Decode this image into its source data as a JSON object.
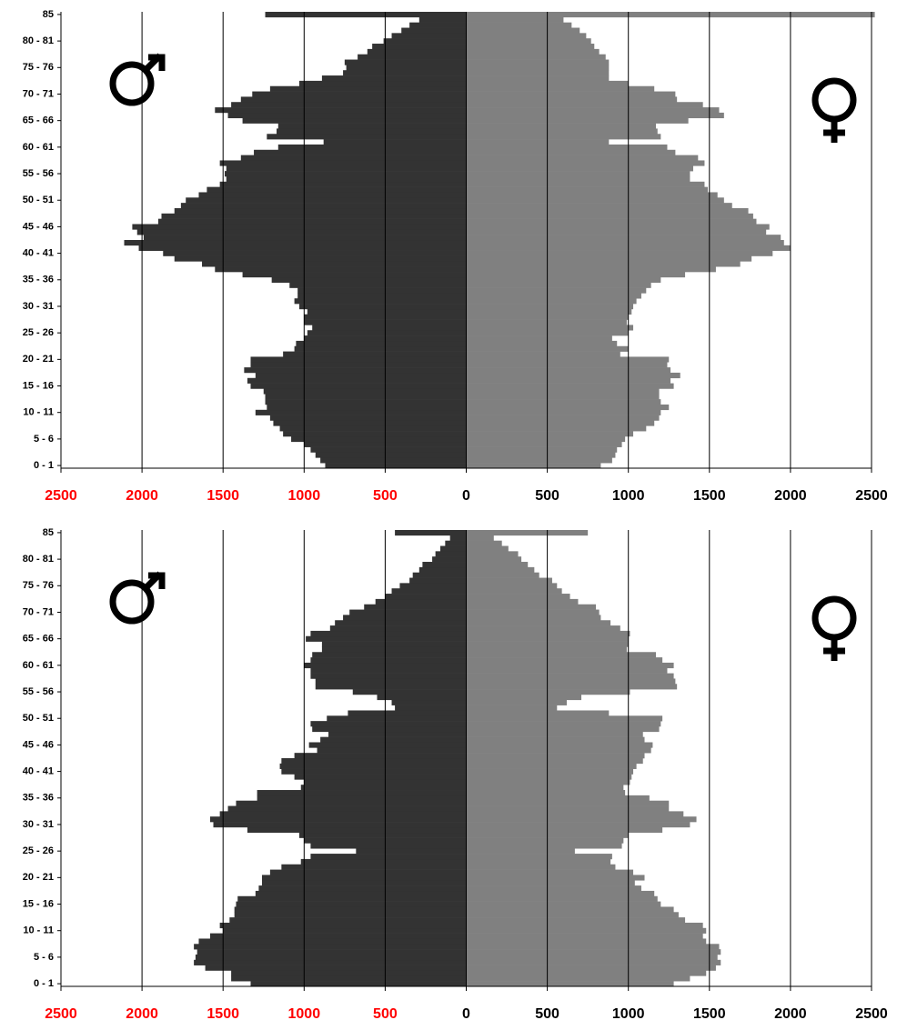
{
  "chart_data": [
    {
      "type": "bar",
      "orientation": "horizontal",
      "categories": [
        "0 - 1",
        null,
        null,
        null,
        null,
        "5 - 6",
        null,
        null,
        null,
        null,
        "10 - 11",
        null,
        null,
        null,
        null,
        "15 - 16",
        null,
        null,
        null,
        null,
        "20 - 21",
        null,
        null,
        null,
        null,
        "25 - 26",
        null,
        null,
        null,
        null,
        "30 - 31",
        null,
        null,
        null,
        null,
        "35 - 36",
        null,
        null,
        null,
        null,
        "40 - 41",
        null,
        null,
        null,
        null,
        "45 - 46",
        null,
        null,
        null,
        null,
        "50 - 51",
        null,
        null,
        null,
        null,
        "55 - 56",
        null,
        null,
        null,
        null,
        "60 - 61",
        null,
        null,
        null,
        null,
        "65 - 66",
        null,
        null,
        null,
        null,
        "70 - 71",
        null,
        null,
        null,
        null,
        "75 - 76",
        null,
        null,
        null,
        null,
        "80 - 81",
        null,
        null,
        null,
        null,
        "85"
      ],
      "series": [
        {
          "color": "#333333",
          "values": [
            -870,
            -900,
            -930,
            -960,
            -1000,
            -1080,
            -1130,
            -1150,
            -1190,
            -1210,
            -1300,
            -1230,
            -1240,
            -1240,
            -1250,
            -1330,
            -1350,
            -1300,
            -1370,
            -1330,
            -1330,
            -1130,
            -1060,
            -1050,
            -1000,
            -980,
            -950,
            -1000,
            -1000,
            -980,
            -1030,
            -1060,
            -1040,
            -1040,
            -1090,
            -1200,
            -1380,
            -1550,
            -1630,
            -1800,
            -1870,
            -2020,
            -2110,
            -1990,
            -2030,
            -2060,
            -1900,
            -1880,
            -1800,
            -1760,
            -1730,
            -1650,
            -1600,
            -1520,
            -1480,
            -1490,
            -1480,
            -1520,
            -1390,
            -1310,
            -1160,
            -880,
            -1230,
            -1170,
            -1160,
            -1380,
            -1470,
            -1550,
            -1450,
            -1390,
            -1320,
            -1210,
            -1030,
            -890,
            -760,
            -740,
            -750,
            -670,
            -610,
            -580,
            -510,
            -460,
            -400,
            -350,
            -290,
            -1240
          ]
        },
        {
          "color": "#808080",
          "values": [
            830,
            900,
            920,
            930,
            960,
            980,
            1030,
            1110,
            1160,
            1190,
            1200,
            1250,
            1200,
            1190,
            1190,
            1280,
            1260,
            1320,
            1260,
            1240,
            1250,
            950,
            1000,
            930,
            900,
            1000,
            1030,
            990,
            1000,
            1020,
            1030,
            1050,
            1080,
            1110,
            1140,
            1200,
            1350,
            1540,
            1690,
            1760,
            1890,
            2000,
            1960,
            1940,
            1850,
            1870,
            1790,
            1770,
            1740,
            1640,
            1590,
            1550,
            1490,
            1470,
            1380,
            1380,
            1400,
            1470,
            1430,
            1290,
            1240,
            880,
            1200,
            1180,
            1170,
            1370,
            1590,
            1560,
            1460,
            1300,
            1290,
            1160,
            1000,
            880,
            880,
            880,
            880,
            860,
            820,
            790,
            770,
            740,
            700,
            650,
            600,
            2520
          ]
        }
      ],
      "xlim": [
        -2500,
        2500
      ],
      "xticks": [
        {
          "value": -2500,
          "label": "2500"
        },
        {
          "value": -2000,
          "label": "2000"
        },
        {
          "value": -1500,
          "label": "1500"
        },
        {
          "value": -1000,
          "label": "1000"
        },
        {
          "value": -500,
          "label": "500"
        },
        0,
        500,
        1000,
        1500,
        2000,
        2500
      ],
      "grid": true
    },
    {
      "type": "bar",
      "orientation": "horizontal",
      "categories": [
        "0 - 1",
        null,
        null,
        null,
        null,
        "5 - 6",
        null,
        null,
        null,
        null,
        "10 - 11",
        null,
        null,
        null,
        null,
        "15 - 16",
        null,
        null,
        null,
        null,
        "20 - 21",
        null,
        null,
        null,
        null,
        "25 - 26",
        null,
        null,
        null,
        null,
        "30 - 31",
        null,
        null,
        null,
        null,
        "35 - 36",
        null,
        null,
        null,
        null,
        "40 - 41",
        null,
        null,
        null,
        null,
        "45 - 46",
        null,
        null,
        null,
        null,
        "50 - 51",
        null,
        null,
        null,
        null,
        "55 - 56",
        null,
        null,
        null,
        null,
        "60 - 61",
        null,
        null,
        null,
        null,
        "65 - 66",
        null,
        null,
        null,
        null,
        "70 - 71",
        null,
        null,
        null,
        null,
        "75 - 76",
        null,
        null,
        null,
        null,
        "80 - 81",
        null,
        null,
        null,
        null,
        "85"
      ],
      "series": [
        {
          "color": "#333333",
          "values": [
            -1330,
            -1450,
            -1450,
            -1610,
            -1680,
            -1670,
            -1660,
            -1680,
            -1650,
            -1580,
            -1500,
            -1520,
            -1460,
            -1430,
            -1430,
            -1420,
            -1410,
            -1300,
            -1280,
            -1260,
            -1260,
            -1210,
            -1140,
            -1020,
            -960,
            -680,
            -960,
            -1000,
            -1030,
            -1350,
            -1560,
            -1580,
            -1520,
            -1470,
            -1420,
            -1290,
            -1290,
            -1020,
            -1000,
            -1060,
            -1140,
            -1150,
            -1140,
            -1060,
            -920,
            -970,
            -900,
            -850,
            -950,
            -960,
            -860,
            -730,
            -440,
            -460,
            -550,
            -700,
            -930,
            -930,
            -960,
            -960,
            -1000,
            -960,
            -950,
            -890,
            -890,
            -990,
            -960,
            -840,
            -810,
            -760,
            -720,
            -630,
            -560,
            -500,
            -460,
            -410,
            -350,
            -330,
            -290,
            -270,
            -210,
            -190,
            -160,
            -130,
            -100,
            -440
          ]
        },
        {
          "color": "#808080",
          "values": [
            1280,
            1380,
            1480,
            1540,
            1570,
            1550,
            1570,
            1560,
            1480,
            1460,
            1480,
            1460,
            1350,
            1310,
            1280,
            1200,
            1180,
            1160,
            1080,
            1040,
            1100,
            1030,
            920,
            890,
            900,
            670,
            960,
            970,
            1000,
            1210,
            1380,
            1420,
            1340,
            1250,
            1250,
            1130,
            980,
            970,
            1010,
            1020,
            1030,
            1050,
            1090,
            1100,
            1140,
            1150,
            1100,
            1090,
            1190,
            1200,
            1210,
            880,
            560,
            620,
            710,
            1010,
            1300,
            1290,
            1280,
            1240,
            1280,
            1210,
            1170,
            990,
            1000,
            1000,
            1010,
            950,
            890,
            830,
            820,
            800,
            690,
            640,
            590,
            560,
            530,
            450,
            420,
            380,
            340,
            320,
            260,
            220,
            170,
            750
          ]
        }
      ],
      "xlim": [
        -2500,
        2500
      ],
      "xticks": [
        {
          "value": -2500,
          "label": "2500"
        },
        {
          "value": -2000,
          "label": "2000"
        },
        {
          "value": -1500,
          "label": "1500"
        },
        {
          "value": -1000,
          "label": "1000"
        },
        {
          "value": -500,
          "label": "500"
        },
        0,
        500,
        1000,
        1500,
        2000,
        2500
      ],
      "grid": true
    }
  ]
}
